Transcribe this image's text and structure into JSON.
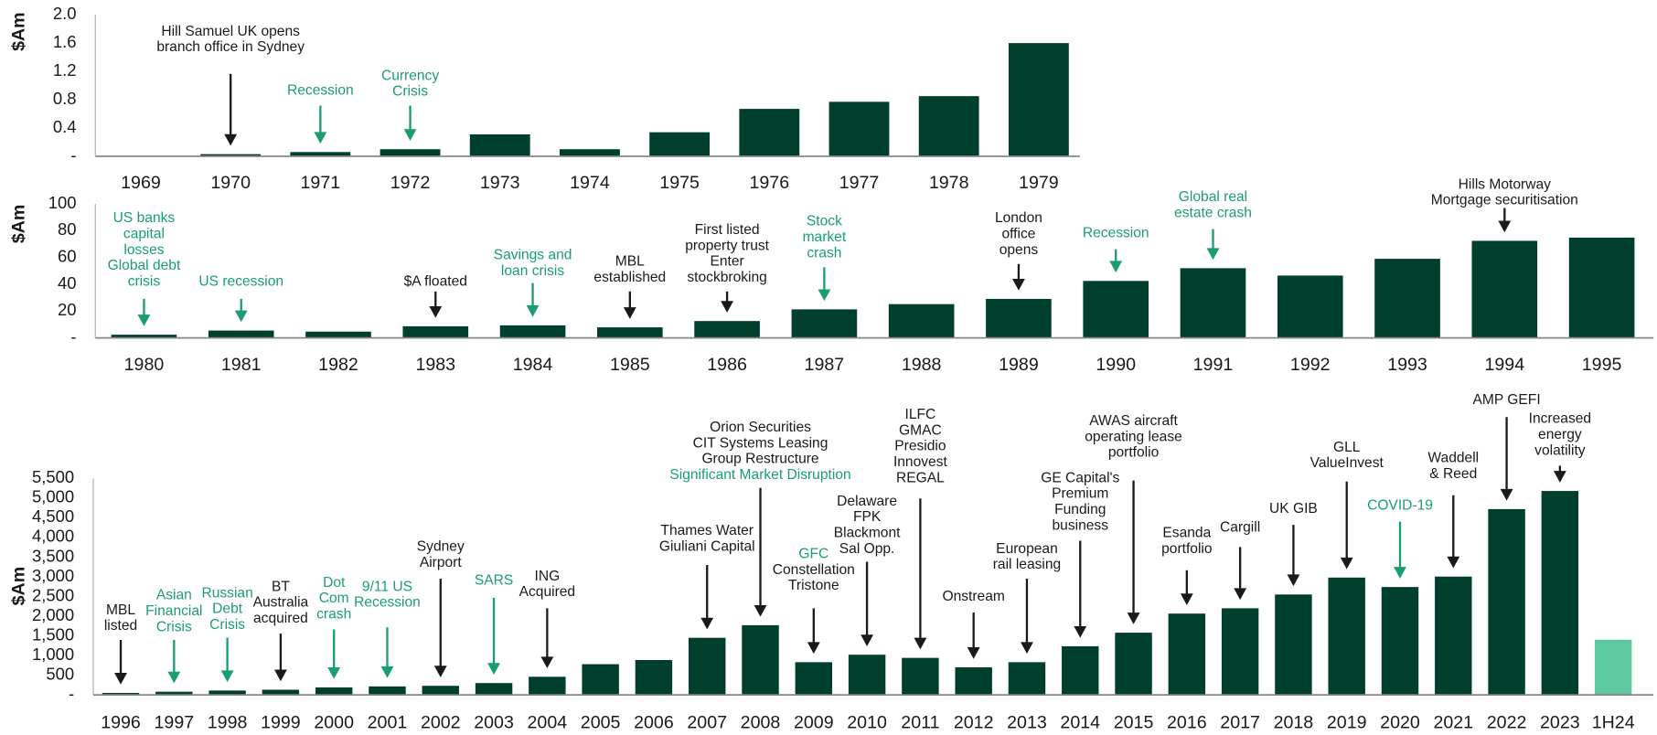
{
  "chart_data": [
    {
      "type": "bar",
      "y_label": "$Am",
      "color": "#003f2d",
      "categories": [
        "1969",
        "1970",
        "1971",
        "1972",
        "1973",
        "1974",
        "1975",
        "1976",
        "1977",
        "1978",
        "1979"
      ],
      "values": [
        0.005,
        0.03,
        0.06,
        0.1,
        0.31,
        0.1,
        0.34,
        0.67,
        0.77,
        0.85,
        1.6
      ],
      "ylim": [
        0,
        2
      ],
      "yticks": [
        {
          "value": 0,
          "label": "-"
        },
        0.4,
        0.8,
        1.2,
        1.6,
        {
          "value": 2,
          "label": "2.0"
        }
      ],
      "annotations": [
        {
          "category": "1970",
          "color": "#1a1a1a",
          "lines": [
            "Hill Samuel UK opens",
            "branch office in Sydney"
          ]
        },
        {
          "category": "1971",
          "color": "#1a9e6e",
          "lines": [
            "Recession"
          ]
        },
        {
          "category": "1972",
          "color": "#1a9e6e",
          "lines": [
            "Currency",
            "Crisis"
          ]
        }
      ]
    },
    {
      "type": "bar",
      "y_label": "$Am",
      "color": "#003f2d",
      "categories": [
        "1980",
        "1981",
        "1982",
        "1983",
        "1984",
        "1985",
        "1986",
        "1987",
        "1988",
        "1989",
        "1990",
        "1991",
        "1992",
        "1993",
        "1994",
        "1995"
      ],
      "values": [
        2.4,
        5.5,
        4.7,
        8.7,
        9.4,
        7.9,
        12.6,
        21.3,
        25.2,
        29.1,
        42.5,
        52,
        46.5,
        59,
        72.4,
        74.8
      ],
      "ylim": [
        0,
        100
      ],
      "yticks": [
        {
          "value": 0,
          "label": "-"
        },
        20,
        40,
        60,
        80,
        100
      ],
      "annotations": [
        {
          "category": "1980",
          "color": "#1a9e6e",
          "lines": [
            "US banks",
            "capital",
            "losses",
            "Global debt",
            "crisis"
          ]
        },
        {
          "category": "1981",
          "color": "#1a9e6e",
          "lines": [
            "US recession"
          ]
        },
        {
          "category": "1983",
          "color": "#1a1a1a",
          "lines": [
            "$A floated"
          ]
        },
        {
          "category": "1984",
          "color": "#1a9e6e",
          "lines": [
            "Savings and",
            "loan crisis"
          ]
        },
        {
          "category": "1985",
          "color": "#1a1a1a",
          "lines": [
            "MBL",
            "established"
          ]
        },
        {
          "category": "1986",
          "color": "#1a1a1a",
          "lines": [
            "First listed",
            "property trust",
            "Enter",
            "stockbroking"
          ]
        },
        {
          "category": "1987",
          "color": "#1a9e6e",
          "lines": [
            "Stock",
            "market",
            "crash"
          ]
        },
        {
          "category": "1989",
          "color": "#1a1a1a",
          "lines": [
            "London",
            "office",
            "opens"
          ]
        },
        {
          "category": "1990",
          "color": "#1a9e6e",
          "lines": [
            "Recession"
          ]
        },
        {
          "category": "1991",
          "color": "#1a9e6e",
          "lines": [
            "Global real",
            "estate crash"
          ]
        },
        {
          "category": "1994",
          "color": "#1a1a1a",
          "lines": [
            "Hills Motorway",
            "Mortgage securitisation"
          ]
        }
      ]
    },
    {
      "type": "bar",
      "y_label": "$Am",
      "color": "#003f2d",
      "highlight_category": "1H24",
      "highlight_color": "#5ec8a0",
      "categories": [
        "1996",
        "1997",
        "1998",
        "1999",
        "2000",
        "2001",
        "2002",
        "2003",
        "2004",
        "2005",
        "2006",
        "2007",
        "2008",
        "2009",
        "2010",
        "2011",
        "2012",
        "2013",
        "2014",
        "2015",
        "2016",
        "2017",
        "2018",
        "2019",
        "2020",
        "2021",
        "2022",
        "2023",
        "1H24"
      ],
      "values": [
        50,
        80,
        110,
        130,
        190,
        215,
        230,
        300,
        460,
        780,
        885,
        1450,
        1770,
        830,
        1020,
        940,
        700,
        830,
        1235,
        1580,
        2065,
        2200,
        2550,
        2980,
        2740,
        3005,
        4720,
        5180,
        1400
      ],
      "ylim": [
        0,
        5500
      ],
      "yticks": [
        {
          "value": 0,
          "label": "-"
        },
        500,
        {
          "value": 1000,
          "label": "1,000"
        },
        {
          "value": 1500,
          "label": "1,500"
        },
        {
          "value": 2000,
          "label": "2,000"
        },
        {
          "value": 2500,
          "label": "2,500"
        },
        {
          "value": 3000,
          "label": "3,000"
        },
        {
          "value": 3500,
          "label": "3,500"
        },
        {
          "value": 4000,
          "label": "4,000"
        },
        {
          "value": 4500,
          "label": "4,500"
        },
        {
          "value": 5000,
          "label": "5,000"
        },
        {
          "value": 5500,
          "label": "5,500"
        }
      ],
      "annotations": [
        {
          "category": "1996",
          "color": "#1a1a1a",
          "lines": [
            "MBL",
            "listed"
          ]
        },
        {
          "category": "1997",
          "color": "#1a9e6e",
          "lines": [
            "Asian",
            "Financial",
            "Crisis"
          ]
        },
        {
          "category": "1998",
          "color": "#1a9e6e",
          "lines": [
            "Russian",
            "Debt",
            "Crisis"
          ]
        },
        {
          "category": "1999",
          "color": "#1a1a1a",
          "lines": [
            "BT",
            "Australia",
            "acquired"
          ]
        },
        {
          "category": "2000",
          "color": "#1a9e6e",
          "lines": [
            "Dot",
            "Com",
            "crash"
          ]
        },
        {
          "category": "2001",
          "color": "#1a9e6e",
          "lines": [
            "9/11 US",
            "Recession"
          ]
        },
        {
          "category": "2002",
          "color": "#1a1a1a",
          "lines": [
            "Sydney",
            "Airport"
          ]
        },
        {
          "category": "2003",
          "color": "#1a9e6e",
          "lines": [
            "SARS"
          ]
        },
        {
          "category": "2004",
          "color": "#1a1a1a",
          "lines": [
            "ING",
            "Acquired"
          ]
        },
        {
          "category": "2007",
          "color": "#1a1a1a",
          "lines": [
            "Thames Water",
            "Giuliani Capital"
          ]
        },
        {
          "category": "2008",
          "color": "#1a1a1a",
          "lines": [
            "Orion Securities",
            "CIT Systems Leasing",
            "Group Restructure",
            {
              "text": "Significant Market Disruption",
              "color": "#1a9e6e"
            }
          ]
        },
        {
          "category": "2009",
          "color": "#1a1a1a",
          "lines": [
            {
              "text": "GFC",
              "color": "#1a9e6e"
            },
            "Constellation",
            "Tristone"
          ]
        },
        {
          "category": "2010",
          "color": "#1a1a1a",
          "lines": [
            "Delaware",
            "FPK",
            "Blackmont",
            "Sal Opp."
          ]
        },
        {
          "category": "2011",
          "color": "#1a1a1a",
          "lines": [
            "ILFC",
            "GMAC",
            "Presidio",
            "Innovest",
            "REGAL"
          ]
        },
        {
          "category": "2012",
          "color": "#1a1a1a",
          "lines": [
            "Onstream"
          ]
        },
        {
          "category": "2013",
          "color": "#1a1a1a",
          "lines": [
            "European",
            "rail leasing"
          ]
        },
        {
          "category": "2014",
          "color": "#1a1a1a",
          "lines": [
            "GE Capital's",
            "Premium",
            "Funding",
            "business"
          ]
        },
        {
          "category": "2015",
          "color": "#1a1a1a",
          "lines": [
            "AWAS aircraft",
            "operating lease",
            "portfolio"
          ]
        },
        {
          "category": "2016",
          "color": "#1a1a1a",
          "lines": [
            "Esanda",
            "portfolio"
          ]
        },
        {
          "category": "2017",
          "color": "#1a1a1a",
          "lines": [
            "Cargill"
          ]
        },
        {
          "category": "2018",
          "color": "#1a1a1a",
          "lines": [
            "UK GIB"
          ]
        },
        {
          "category": "2019",
          "color": "#1a1a1a",
          "lines": [
            "GLL",
            "ValueInvest"
          ]
        },
        {
          "category": "2020",
          "color": "#1a9e6e",
          "lines": [
            "COVID-19"
          ]
        },
        {
          "category": "2021",
          "color": "#1a1a1a",
          "lines": [
            "Waddell",
            "& Reed"
          ]
        },
        {
          "category": "2022",
          "color": "#1a1a1a",
          "lines": [
            "AMP GEFI"
          ]
        },
        {
          "category": "2023",
          "color": "#1a1a1a",
          "lines": [
            "Increased",
            "energy",
            "volatility"
          ]
        }
      ]
    }
  ]
}
